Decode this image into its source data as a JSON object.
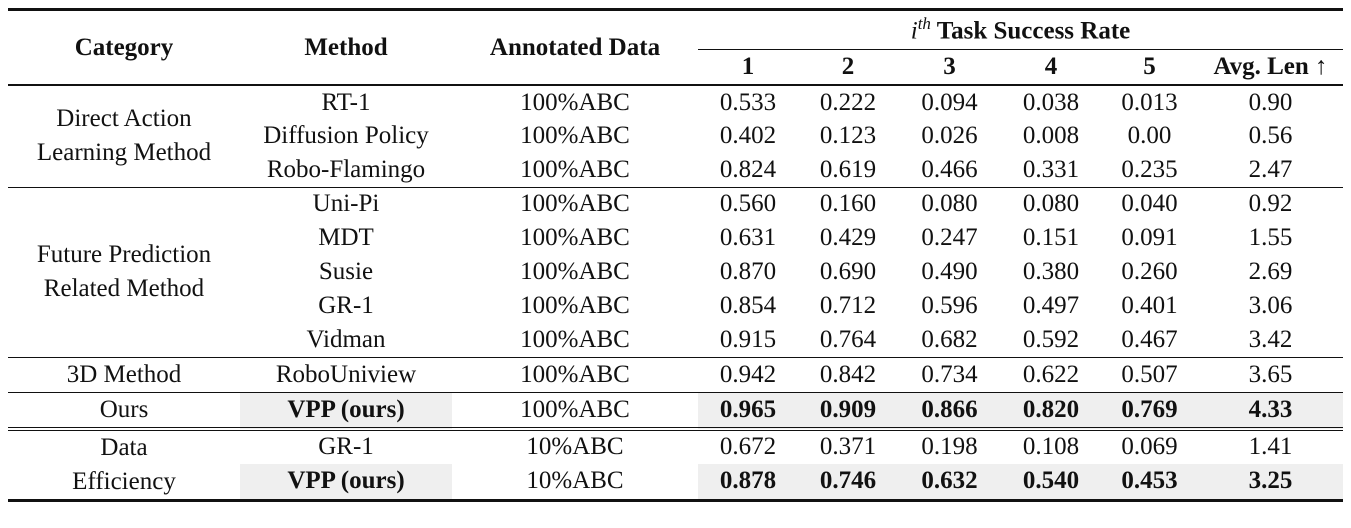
{
  "header": {
    "category": "Category",
    "method": "Method",
    "annotated": "Annotated Data",
    "group_i": "i",
    "group_sup": "th",
    "group_rest": " Task Success Rate",
    "cols": [
      "1",
      "2",
      "3",
      "4",
      "5"
    ],
    "avg": "Avg. Len ↑"
  },
  "groups": [
    {
      "category_lines": [
        "Direct Action",
        "Learning Method"
      ],
      "rows": [
        {
          "method": "RT-1",
          "data": "100%ABC",
          "vals": [
            "0.533",
            "0.222",
            "0.094",
            "0.038",
            "0.013"
          ],
          "avg": "0.90"
        },
        {
          "method": "Diffusion Policy",
          "data": "100%ABC",
          "vals": [
            "0.402",
            "0.123",
            "0.026",
            "0.008",
            "0.00"
          ],
          "avg": "0.56"
        },
        {
          "method": "Robo-Flamingo",
          "data": "100%ABC",
          "vals": [
            "0.824",
            "0.619",
            "0.466",
            "0.331",
            "0.235"
          ],
          "avg": "2.47"
        }
      ]
    },
    {
      "category_lines": [
        "Future Prediction",
        "Related Method"
      ],
      "rows": [
        {
          "method": "Uni-Pi",
          "data": "100%ABC",
          "vals": [
            "0.560",
            "0.160",
            "0.080",
            "0.080",
            "0.040"
          ],
          "avg": "0.92"
        },
        {
          "method": "MDT",
          "data": "100%ABC",
          "vals": [
            "0.631",
            "0.429",
            "0.247",
            "0.151",
            "0.091"
          ],
          "avg": "1.55"
        },
        {
          "method": "Susie",
          "data": "100%ABC",
          "vals": [
            "0.870",
            "0.690",
            "0.490",
            "0.380",
            "0.260"
          ],
          "avg": "2.69"
        },
        {
          "method": "GR-1",
          "data": "100%ABC",
          "vals": [
            "0.854",
            "0.712",
            "0.596",
            "0.497",
            "0.401"
          ],
          "avg": "3.06"
        },
        {
          "method": "Vidman",
          "data": "100%ABC",
          "vals": [
            "0.915",
            "0.764",
            "0.682",
            "0.592",
            "0.467"
          ],
          "avg": "3.42"
        }
      ]
    },
    {
      "category_lines": [
        "3D Method"
      ],
      "rows": [
        {
          "method": "RoboUniview",
          "data": "100%ABC",
          "vals": [
            "0.942",
            "0.842",
            "0.734",
            "0.622",
            "0.507"
          ],
          "avg": "3.65"
        }
      ]
    },
    {
      "category_lines": [
        "Ours"
      ],
      "rows": [
        {
          "method": "VPP (ours)",
          "data": "100%ABC",
          "vals": [
            "0.965",
            "0.909",
            "0.866",
            "0.820",
            "0.769"
          ],
          "avg": "4.33",
          "highlight": true
        }
      ]
    },
    {
      "category_lines": [
        "Data",
        "Efficiency"
      ],
      "rows": [
        {
          "method": "GR-1",
          "data": "10%ABC",
          "vals": [
            "0.672",
            "0.371",
            "0.198",
            "0.108",
            "0.069"
          ],
          "avg": "1.41"
        },
        {
          "method": "VPP (ours)",
          "data": "10%ABC",
          "vals": [
            "0.878",
            "0.746",
            "0.632",
            "0.540",
            "0.453"
          ],
          "avg": "3.25",
          "highlight": true
        }
      ]
    }
  ]
}
